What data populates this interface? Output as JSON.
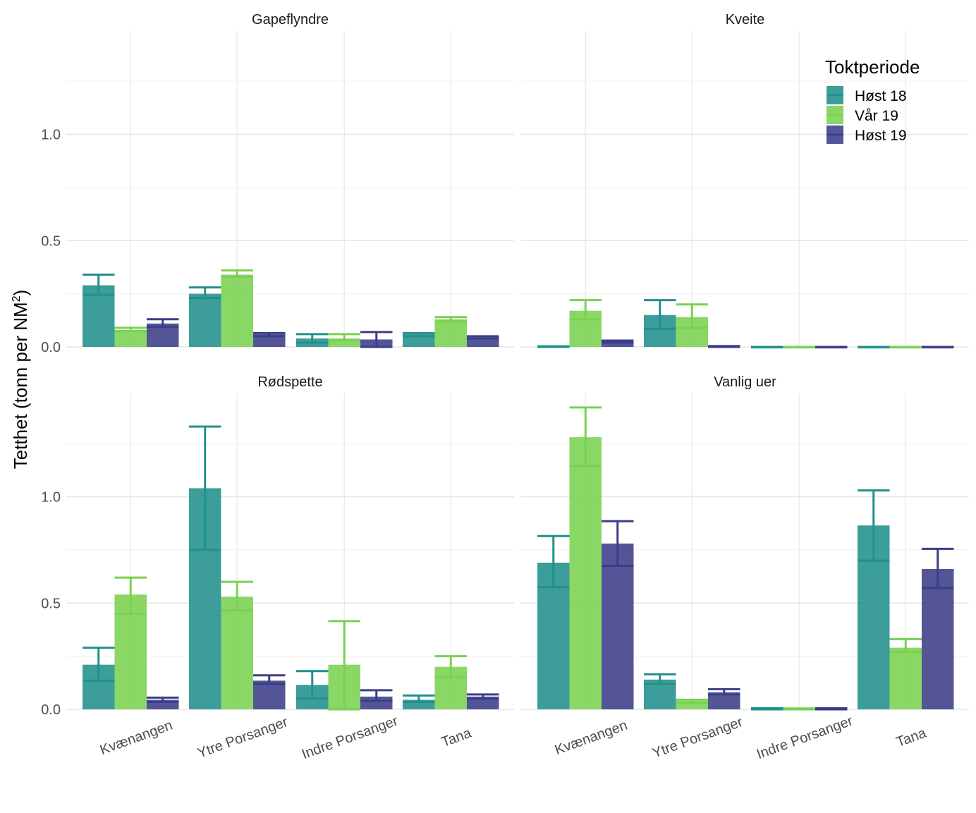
{
  "chart_data": {
    "type": "bar",
    "facets": [
      "Gapeflyndre",
      "Kveite",
      "Rødspette",
      "Vanlig uer"
    ],
    "categories": [
      "Kvænangen",
      "Ytre Porsanger",
      "Indre Porsanger",
      "Tana"
    ],
    "series_names": [
      "Høst 18",
      "Vår 19",
      "Høst 19"
    ],
    "colors": [
      "#21908c",
      "#7ad151",
      "#3b3d89"
    ],
    "panels": [
      {
        "facet": "Gapeflyndre",
        "series": [
          {
            "name": "Høst 18",
            "values": [
              0.29,
              0.25,
              0.04,
              0.06
            ],
            "lower": [
              0.245,
              0.23,
              0.02,
              0.05
            ],
            "upper": [
              0.34,
              0.28,
              0.06,
              0.065
            ]
          },
          {
            "name": "Vår 19",
            "values": [
              0.08,
              0.34,
              0.04,
              0.13
            ],
            "lower": [
              0.075,
              0.33,
              0.03,
              0.12
            ],
            "upper": [
              0.09,
              0.36,
              0.06,
              0.14
            ]
          },
          {
            "name": "Høst 19",
            "values": [
              0.11,
              0.06,
              0.035,
              0.045
            ],
            "lower": [
              0.095,
              0.05,
              0.0,
              0.04
            ],
            "upper": [
              0.13,
              0.065,
              0.07,
              0.05
            ]
          }
        ]
      },
      {
        "facet": "Kveite",
        "series": [
          {
            "name": "Høst 18",
            "values": [
              0.002,
              0.15,
              0.0,
              0.0
            ],
            "lower": [
              0.0,
              0.085,
              0.0,
              0.0
            ],
            "upper": [
              0.003,
              0.22,
              0.0,
              0.0
            ]
          },
          {
            "name": "Vår 19",
            "values": [
              0.17,
              0.14,
              0.0,
              0.0
            ],
            "lower": [
              0.13,
              0.09,
              0.0,
              0.0
            ],
            "upper": [
              0.22,
              0.2,
              0.0,
              0.0
            ]
          },
          {
            "name": "Høst 19",
            "values": [
              0.03,
              0.003,
              0.0,
              0.0
            ],
            "lower": [
              0.02,
              0.0,
              0.0,
              0.0
            ],
            "upper": [
              0.03,
              0.004,
              0.0,
              0.0
            ]
          }
        ]
      },
      {
        "facet": "Rødspette",
        "series": [
          {
            "name": "Høst 18",
            "values": [
              0.21,
              1.04,
              0.115,
              0.045
            ],
            "lower": [
              0.135,
              0.75,
              0.05,
              0.035
            ],
            "upper": [
              0.29,
              1.33,
              0.18,
              0.065
            ]
          },
          {
            "name": "Vår 19",
            "values": [
              0.54,
              0.53,
              0.21,
              0.2
            ],
            "lower": [
              0.45,
              0.465,
              0.0,
              0.15
            ],
            "upper": [
              0.62,
              0.6,
              0.415,
              0.25
            ]
          },
          {
            "name": "Høst 19",
            "values": [
              0.045,
              0.135,
              0.06,
              0.06
            ],
            "lower": [
              0.035,
              0.12,
              0.04,
              0.05
            ],
            "upper": [
              0.055,
              0.16,
              0.09,
              0.07
            ]
          }
        ]
      },
      {
        "facet": "Vanlig uer",
        "series": [
          {
            "name": "Høst 18",
            "values": [
              0.69,
              0.14,
              0.004,
              0.865
            ],
            "lower": [
              0.575,
              0.12,
              0.0,
              0.7
            ],
            "upper": [
              0.815,
              0.165,
              0.005,
              1.03
            ]
          },
          {
            "name": "Vår 19",
            "values": [
              1.28,
              0.04,
              0.003,
              0.29
            ],
            "lower": [
              1.145,
              0.03,
              0.0,
              0.27
            ],
            "upper": [
              1.42,
              0.045,
              0.004,
              0.33
            ]
          },
          {
            "name": "Høst 19",
            "values": [
              0.78,
              0.08,
              0.004,
              0.66
            ],
            "lower": [
              0.675,
              0.07,
              0.0,
              0.57
            ],
            "upper": [
              0.885,
              0.095,
              0.005,
              0.755
            ]
          }
        ]
      }
    ],
    "y_ticks": [
      "0.0",
      "0.5",
      "1.0"
    ],
    "ylim": [
      0,
      1.5
    ],
    "ylabel": "Tetthet (tonn per NM",
    "ylabel_sup": "2",
    "ylabel_close": ")",
    "xlabel": "",
    "legend_title": "Toktperiode",
    "legend_position": "top-right",
    "grid": true
  }
}
